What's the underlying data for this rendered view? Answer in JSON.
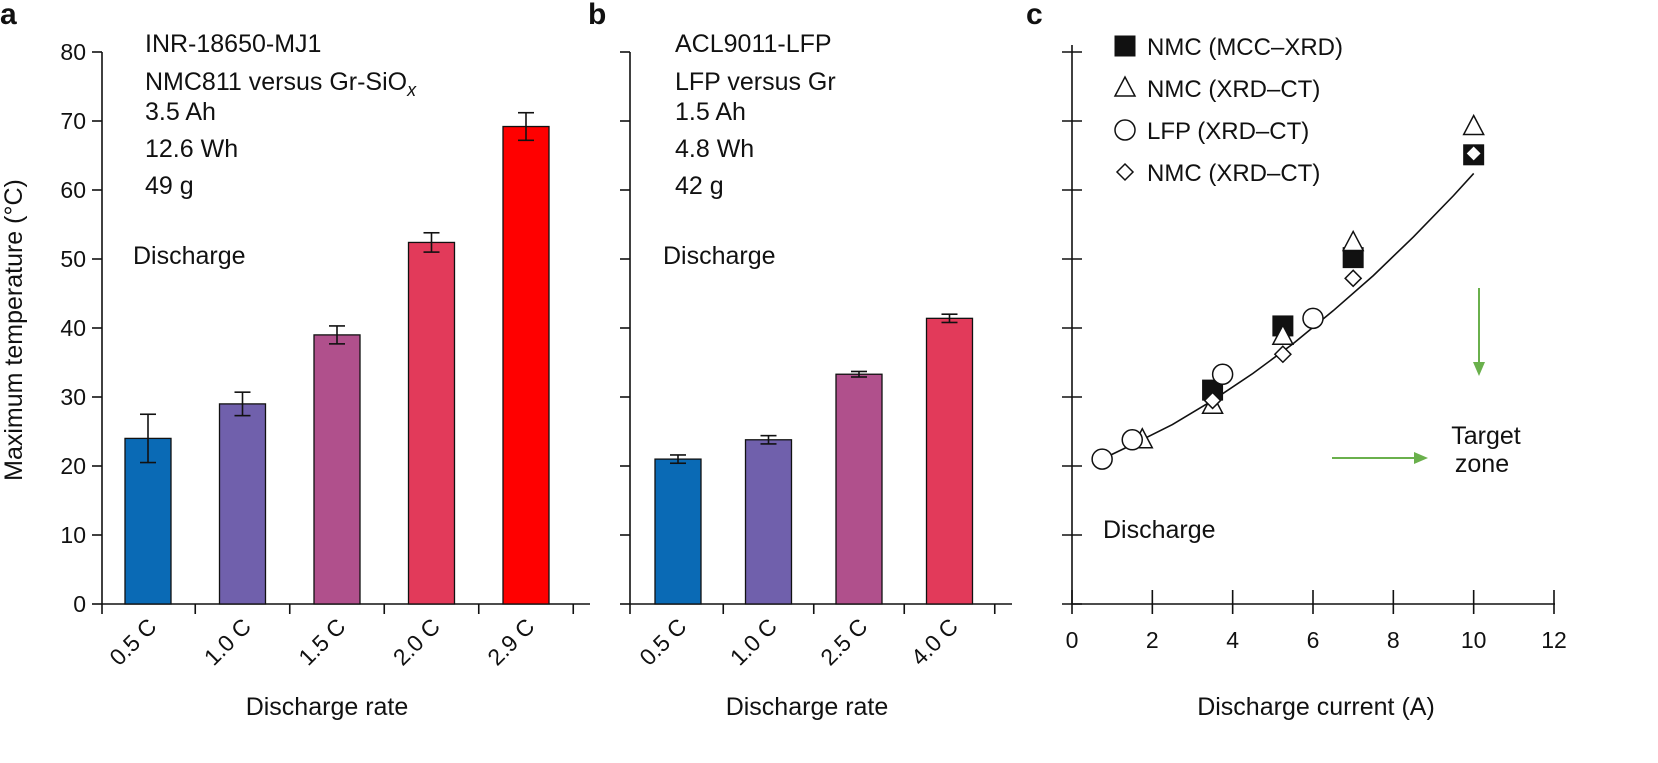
{
  "panels": {
    "a": {
      "letter": "a",
      "info_lines": [
        "INR-18650-MJ1",
        "NMC811 versus Gr-SiO",
        "3.5 Ah",
        "12.6 Wh",
        "49 g"
      ],
      "info_subscript": "x",
      "annotation": "Discharge"
    },
    "b": {
      "letter": "b",
      "info_lines": [
        "ACL9011-LFP",
        "LFP versus Gr",
        "1.5 Ah",
        "4.8 Wh",
        "42 g"
      ],
      "annotation": "Discharge"
    },
    "c": {
      "letter": "c",
      "annotation": "Discharge",
      "target_zone": [
        "Target",
        "zone"
      ]
    }
  },
  "chart_data": [
    {
      "type": "bar",
      "panel": "a",
      "ylabel": "Maximum temperature (°C)",
      "xlabel": "Discharge rate",
      "ylim": [
        0,
        80
      ],
      "yticks": [
        0,
        10,
        20,
        30,
        40,
        50,
        60,
        70,
        80
      ],
      "categories": [
        "0.5 C",
        "1.0 C",
        "1.5 C",
        "2.0 C",
        "2.9 C"
      ],
      "values": [
        24.0,
        29.0,
        39.0,
        52.4,
        69.2
      ],
      "errors": [
        3.5,
        1.7,
        1.3,
        1.4,
        2.0
      ],
      "colors": [
        "#0a6ab5",
        "#7060ac",
        "#b0508c",
        "#e23a5a",
        "#ff0000"
      ]
    },
    {
      "type": "bar",
      "panel": "b",
      "xlabel": "Discharge rate",
      "ylim": [
        0,
        80
      ],
      "yticks": [
        0,
        10,
        20,
        30,
        40,
        50,
        60,
        70,
        80
      ],
      "categories": [
        "0.5 C",
        "1.0 C",
        "2.5 C",
        "4.0 C"
      ],
      "values": [
        21.0,
        23.8,
        33.3,
        41.4
      ],
      "errors": [
        0.6,
        0.6,
        0.4,
        0.6
      ],
      "colors": [
        "#0a6ab5",
        "#7060ac",
        "#b0508c",
        "#e23a5a"
      ]
    },
    {
      "type": "scatter",
      "panel": "c",
      "xlabel": "Discharge current (A)",
      "xlim": [
        0,
        12
      ],
      "xticks": [
        0,
        2,
        4,
        6,
        8,
        10,
        12
      ],
      "ylim": [
        0,
        80
      ],
      "yticks": [
        0,
        10,
        20,
        30,
        40,
        50,
        60,
        70,
        80
      ],
      "series": [
        {
          "name": "NMC (MCC–XRD)",
          "marker": "square-filled",
          "x": [
            3.5,
            5.25,
            7.0,
            10.0
          ],
          "y": [
            31.0,
            40.3,
            50.2,
            65.1
          ]
        },
        {
          "name": "NMC (XRD–CT)",
          "marker": "triangle-open",
          "x": [
            1.75,
            3.5,
            5.25,
            7.0,
            10.0
          ],
          "y": [
            23.8,
            28.8,
            38.8,
            52.4,
            69.2
          ]
        },
        {
          "name": "LFP (XRD–CT)",
          "marker": "circle-open",
          "x": [
            0.75,
            1.5,
            3.75,
            6.0
          ],
          "y": [
            21.0,
            23.8,
            33.3,
            41.4
          ]
        },
        {
          "name": "NMC (XRD–CT)",
          "marker": "diamond-open",
          "x": [
            3.5,
            5.25,
            7.0,
            10.0
          ],
          "y": [
            29.5,
            36.2,
            47.2,
            65.3
          ]
        }
      ],
      "fit_curve": {
        "x": [
          0.75,
          1.5,
          2.5,
          3.5,
          4.5,
          5.5,
          6.5,
          7.5,
          8.5,
          9.5,
          10.0
        ],
        "y": [
          21.0,
          23.1,
          26.0,
          29.5,
          33.4,
          37.7,
          42.5,
          47.6,
          53.2,
          59.2,
          62.4
        ]
      }
    }
  ]
}
